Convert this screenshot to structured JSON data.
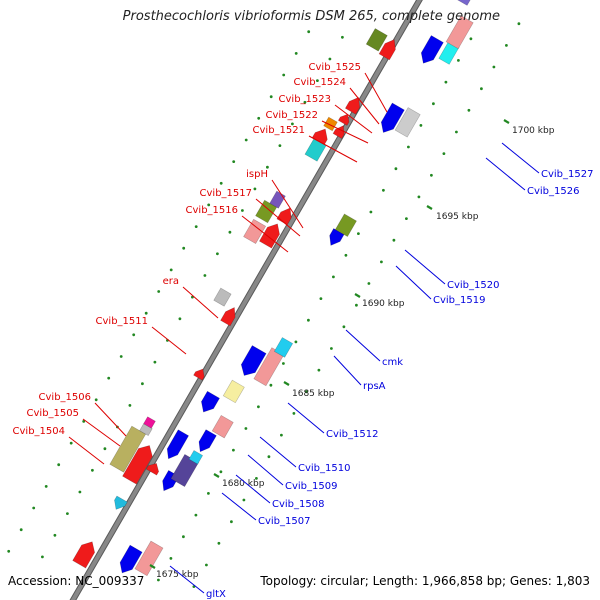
{
  "title": "Prosthecochloris vibrioformis DSM 265, complete genome",
  "footer": {
    "accession": "Accession: NC_009337",
    "topology": "Topology: circular; Length: 1,966,858 bp; Genes: 1,803"
  },
  "colors": {
    "backbone": "#888888",
    "forward_label": "#dd0000",
    "reverse_label": "#0000dd",
    "tick": "#228822"
  },
  "ticks": [
    {
      "label": "1675 kbp"
    },
    {
      "label": "1680 kbp"
    },
    {
      "label": "1685 kbp"
    },
    {
      "label": "1690 kbp"
    },
    {
      "label": "1695 kbp"
    },
    {
      "label": "1700 kbp"
    }
  ],
  "forward_labels": [
    {
      "text": "Cvib_1525"
    },
    {
      "text": "Cvib_1524"
    },
    {
      "text": "Cvib_1523"
    },
    {
      "text": "Cvib_1522"
    },
    {
      "text": "Cvib_1521"
    },
    {
      "text": "ispH"
    },
    {
      "text": "Cvib_1517"
    },
    {
      "text": "Cvib_1516"
    },
    {
      "text": "era"
    },
    {
      "text": "Cvib_1511"
    },
    {
      "text": "Cvib_1506"
    },
    {
      "text": "Cvib_1505"
    },
    {
      "text": "Cvib_1504"
    }
  ],
  "reverse_labels": [
    {
      "text": "Cvib_1527"
    },
    {
      "text": "Cvib_1526"
    },
    {
      "text": "Cvib_1520"
    },
    {
      "text": "Cvib_1519"
    },
    {
      "text": "cmk"
    },
    {
      "text": "rpsA"
    },
    {
      "text": "Cvib_1512"
    },
    {
      "text": "Cvib_1510"
    },
    {
      "text": "Cvib_1509"
    },
    {
      "text": "Cvib_1508"
    },
    {
      "text": "Cvib_1507"
    },
    {
      "text": "gltX"
    }
  ]
}
